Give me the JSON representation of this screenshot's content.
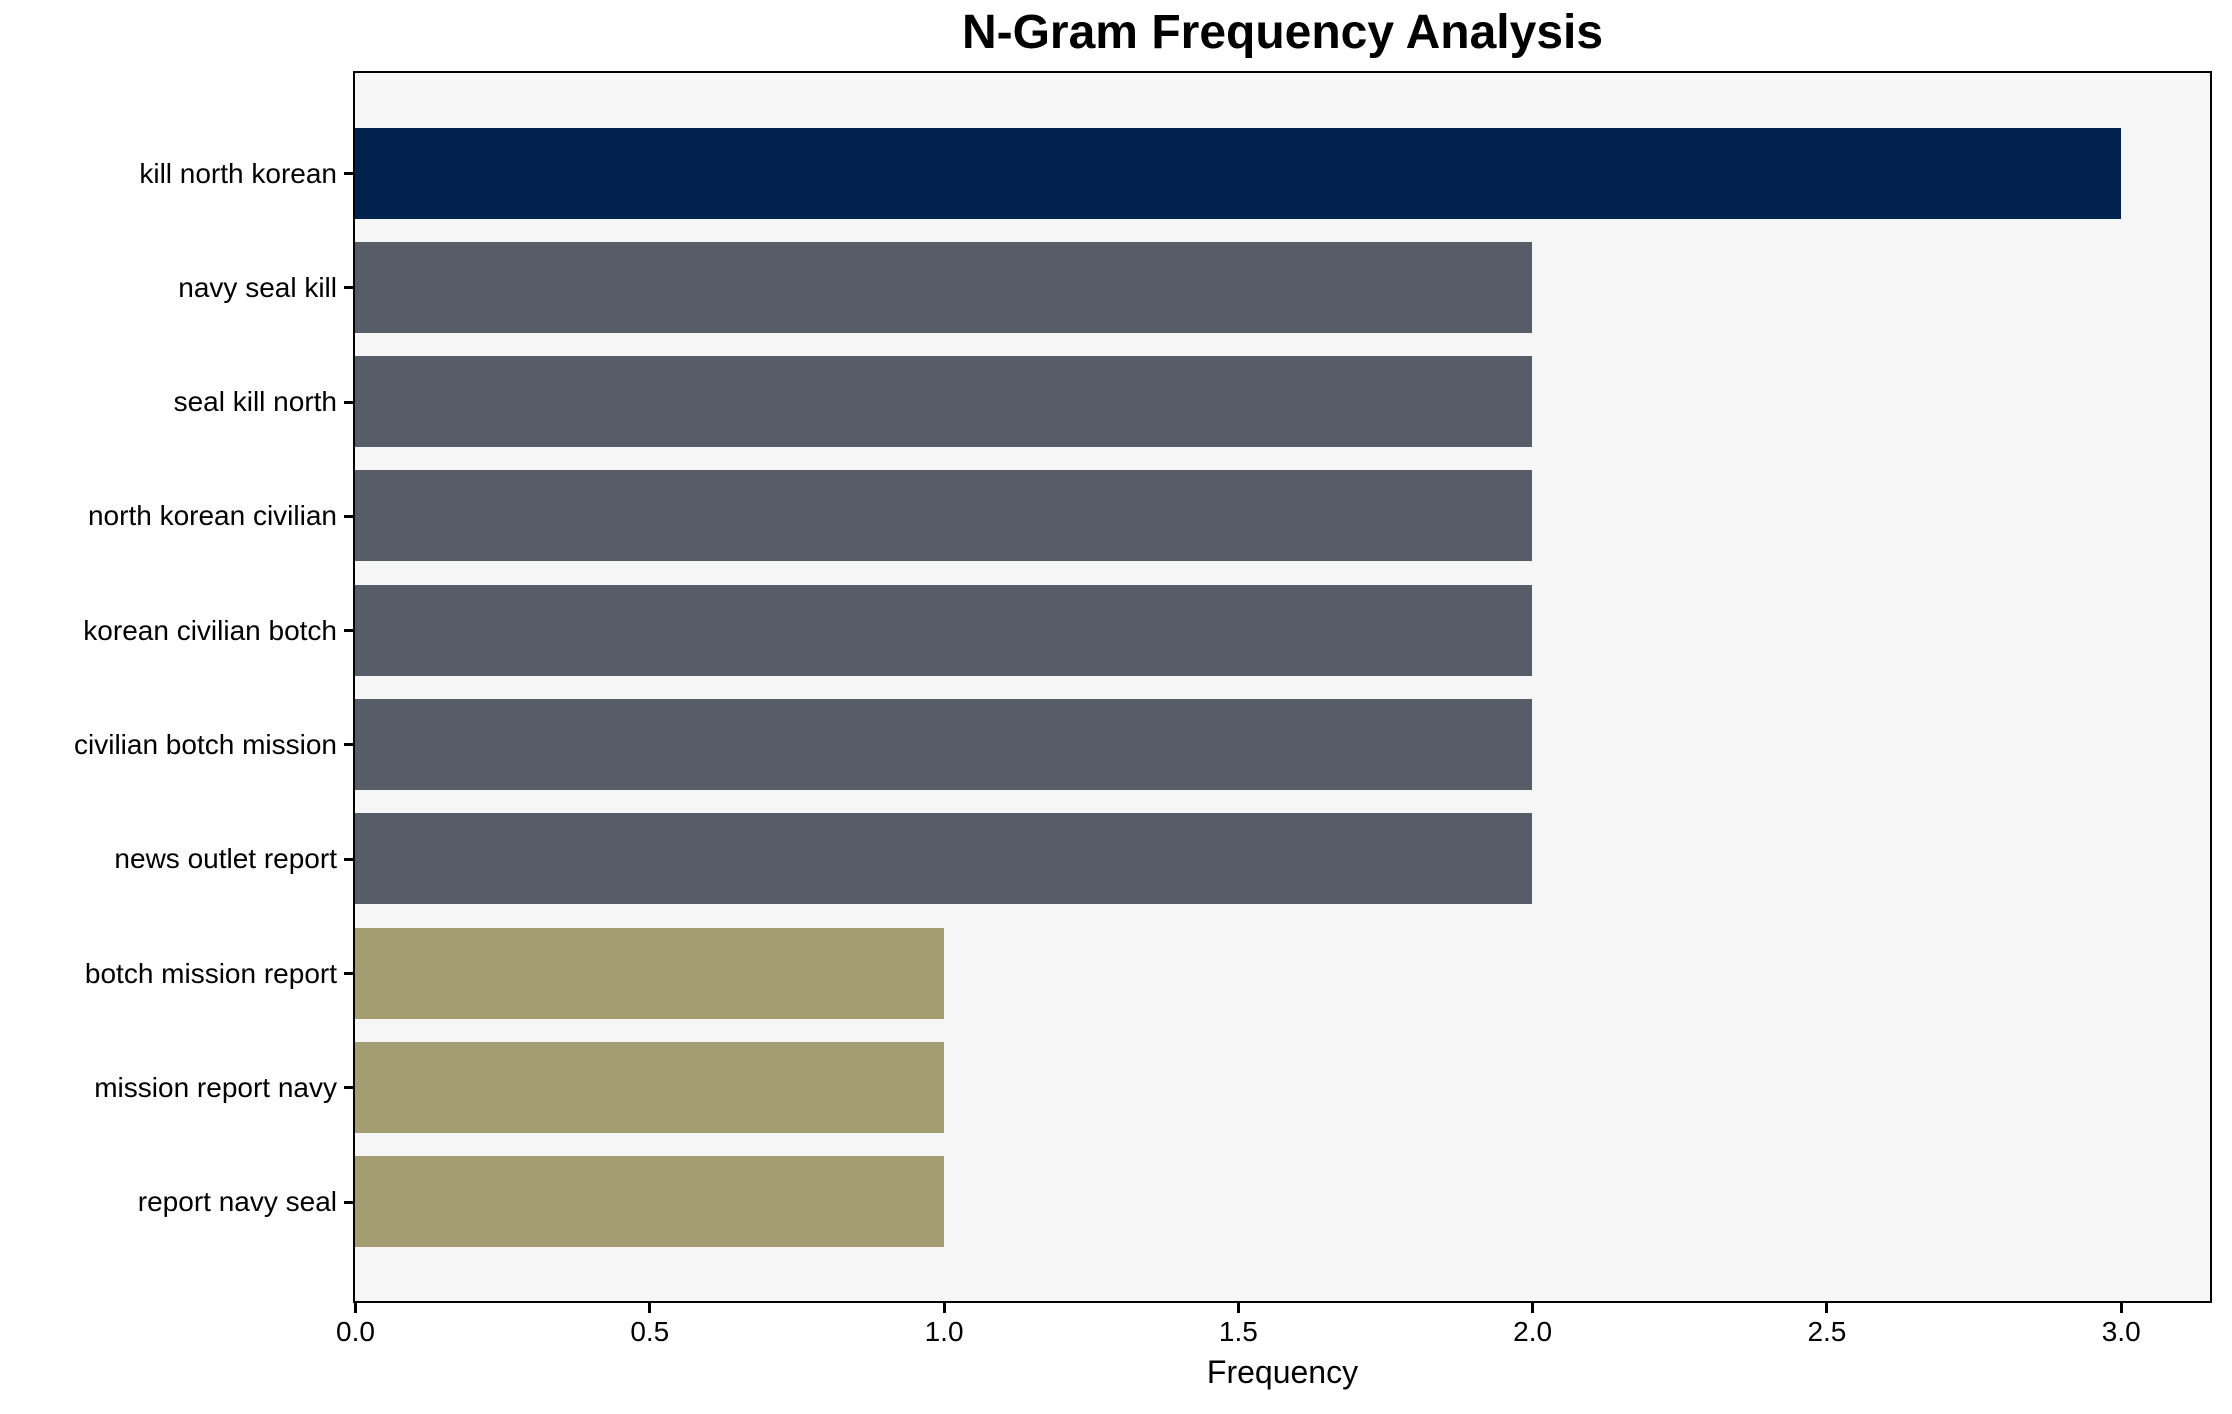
{
  "chart_data": {
    "type": "bar",
    "orientation": "horizontal",
    "title": "N-Gram Frequency Analysis",
    "xlabel": "Frequency",
    "ylabel": "",
    "categories": [
      "kill north korean",
      "navy seal kill",
      "seal kill north",
      "north korean civilian",
      "korean civilian botch",
      "civilian botch mission",
      "news outlet report",
      "botch mission report",
      "mission report navy",
      "report navy seal"
    ],
    "values": [
      3,
      2,
      2,
      2,
      2,
      2,
      2,
      1,
      1,
      1
    ],
    "bar_colors": [
      "#02224E",
      "#565C68",
      "#565C68",
      "#565C68",
      "#565C68",
      "#565C68",
      "#565C68",
      "#A49D72",
      "#A49D72",
      "#A49D72"
    ],
    "xlim": [
      0,
      3.15
    ],
    "xticks": [
      0,
      0.5,
      1,
      1.5,
      2,
      2.5,
      3
    ],
    "xtick_labels": [
      "0.0",
      "0.5",
      "1.0",
      "1.5",
      "2.0",
      "2.5",
      "3.0"
    ],
    "grid": false,
    "legend_position": "none",
    "colors": {
      "plot_background": "#F6F6F6",
      "figure_background": "#FFFFFF",
      "spine": "#000000",
      "text": "#000000"
    }
  }
}
